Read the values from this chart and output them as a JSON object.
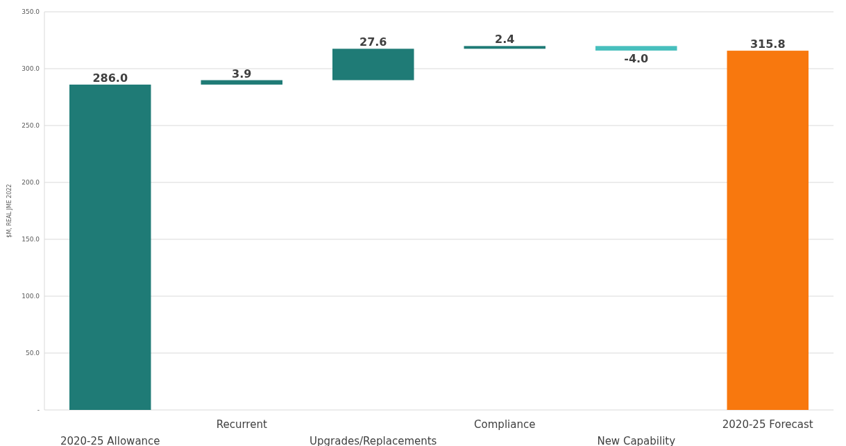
{
  "chart_data": {
    "type": "bar",
    "ylabel": "$M, REAL JME 2022",
    "categories": [
      "2020-25 Allowance",
      "Recurrent",
      "Upgrades/Replacements",
      "Compliance",
      "New Capability",
      "2020-25 Forecast"
    ],
    "values": [
      286.0,
      3.9,
      27.6,
      2.4,
      -4.0,
      315.8
    ],
    "base": [
      0,
      286.0,
      289.9,
      317.5,
      319.9,
      0
    ],
    "colors": [
      "#1f7b76",
      "#1f7b76",
      "#1f7b76",
      "#1f7b76",
      "#47bfbd",
      "#f8780e"
    ],
    "ylim": [
      0,
      350
    ],
    "yticks": [
      {
        "value": 0,
        "label": "-"
      },
      {
        "value": 50,
        "label": "50.0"
      },
      {
        "value": 100,
        "label": "100.0"
      },
      {
        "value": 150,
        "label": "150.0"
      },
      {
        "value": 200,
        "label": "200.0"
      },
      {
        "value": 250,
        "label": "250.0"
      },
      {
        "value": 300,
        "label": "300.0"
      },
      {
        "value": 350,
        "label": "350.0"
      }
    ],
    "value_labels": [
      "286.0",
      "3.9",
      "27.6",
      "2.4",
      "-4.0",
      "315.8"
    ],
    "grid": "y"
  }
}
